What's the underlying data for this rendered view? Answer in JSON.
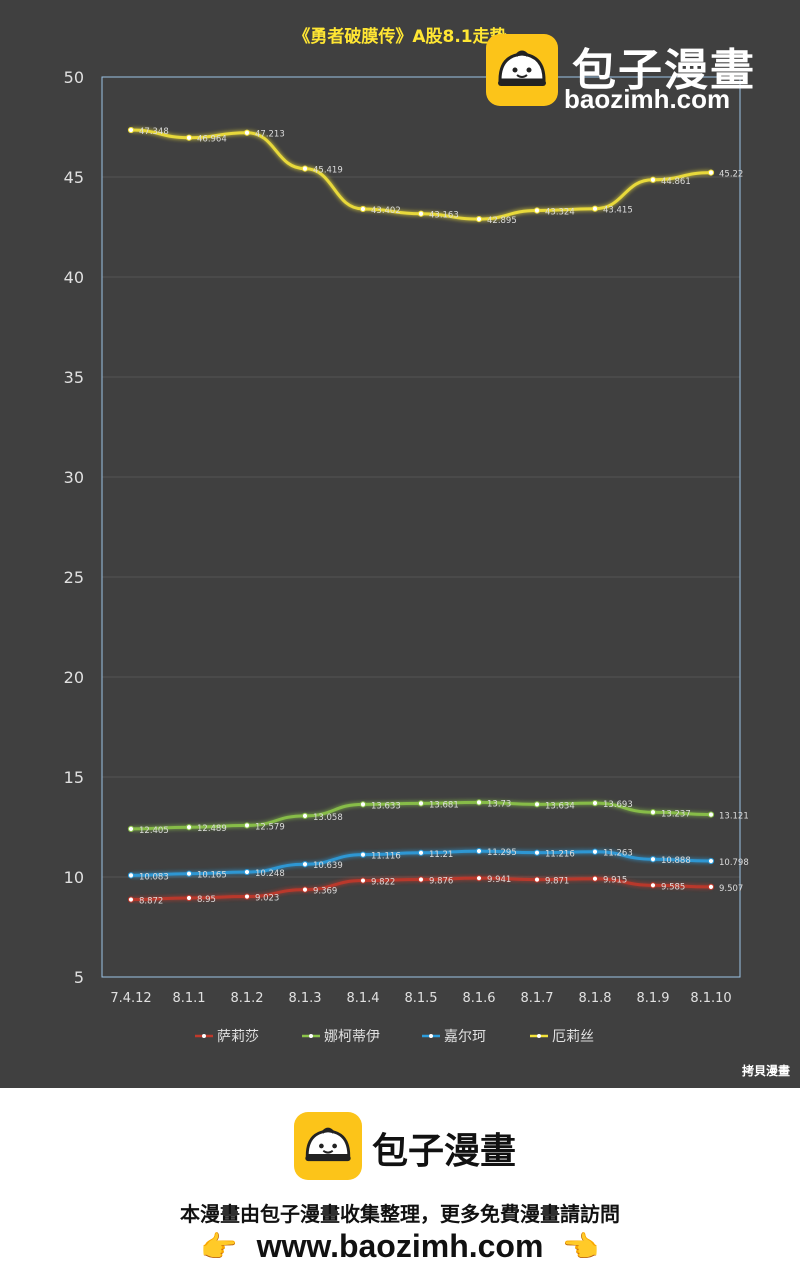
{
  "chart_data": {
    "type": "line",
    "title": "《勇者破膜传》A股8.1走势",
    "categories": [
      "7.4.12",
      "8.1.1",
      "8.1.2",
      "8.1.3",
      "8.1.4",
      "8.1.5",
      "8.1.6",
      "8.1.7",
      "8.1.8",
      "8.1.9",
      "8.1.10"
    ],
    "ylim": [
      5,
      50
    ],
    "yticks": [
      "5",
      "10",
      "15",
      "20",
      "25",
      "30",
      "35",
      "40",
      "45",
      "50"
    ],
    "series": [
      {
        "name": "萨莉莎",
        "color": "#c0392b",
        "values": [
          8.872,
          8.95,
          9.023,
          9.369,
          9.822,
          9.876,
          9.941,
          9.871,
          9.915,
          9.585,
          9.507
        ],
        "labels": [
          "8.872",
          "8.95",
          "9.023",
          "9.369",
          "9.822",
          "9.876",
          "9.941",
          "9.871",
          "9.915",
          "9.585",
          "9.507"
        ]
      },
      {
        "name": "娜柯蒂伊",
        "color": "#8bc34a",
        "values": [
          12.405,
          12.489,
          12.579,
          13.058,
          13.633,
          13.681,
          13.73,
          13.634,
          13.693,
          13.237,
          13.121
        ],
        "labels": [
          "12.405",
          "12.489",
          "12.579",
          "13.058",
          "13.633",
          "13.681",
          "13.73",
          "13.634",
          "13.693",
          "13.237",
          "13.121"
        ]
      },
      {
        "name": "嘉尔珂",
        "color": "#2d9cdb",
        "values": [
          10.083,
          10.165,
          10.248,
          10.639,
          11.116,
          11.21,
          11.295,
          11.216,
          11.263,
          10.888,
          10.798
        ],
        "labels": [
          "10.083",
          "10.165",
          "10.248",
          "10.639",
          "11.116",
          "11.21",
          "11.295",
          "11.216",
          "11.263",
          "10.888",
          "10.798"
        ]
      },
      {
        "name": "厄莉丝",
        "color": "#f2e23a",
        "values": [
          47.348,
          46.964,
          47.213,
          45.419,
          43.402,
          43.163,
          42.895,
          43.324,
          43.415,
          44.861,
          45.22
        ],
        "labels": [
          "47.348",
          "46.964",
          "47.213",
          "45.419",
          "43.402",
          "43.163",
          "42.895",
          "43.324",
          "43.415",
          "44.861",
          "45.22"
        ]
      }
    ],
    "legend_position": "bottom",
    "grid": true
  },
  "watermark": {
    "name": "包子漫畫",
    "domain": "baozimh.com"
  },
  "credit": "拷貝漫畫",
  "footer": {
    "name": "包子漫畫",
    "description": "本漫畫由包子漫畫收集整理，更多免費漫畫請訪問",
    "url": "www.baozimh.com",
    "hand_icon": "pointing-hand-icon"
  },
  "colors": {
    "background": "#404040",
    "accent": "#fcc419"
  }
}
